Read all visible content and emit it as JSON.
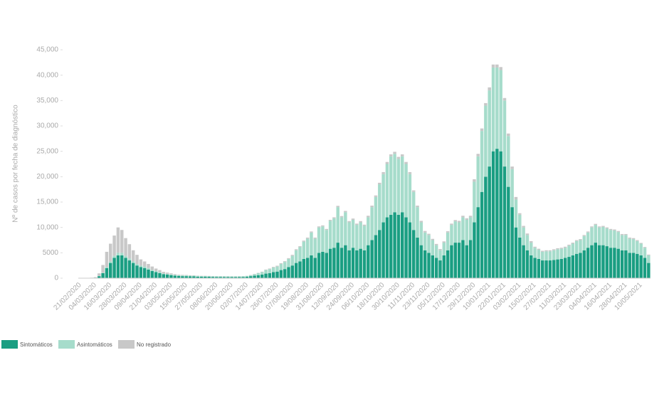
{
  "chart_data": {
    "type": "stacked_bar",
    "y_label": "Nº de casos por fecha de diagnóstico",
    "ylim": [
      0,
      45000
    ],
    "yticks": [
      0,
      5000,
      {
        "value": 10000,
        "label": "10,000"
      },
      {
        "value": 15000,
        "label": "15,000"
      },
      {
        "value": 20000,
        "label": "20,000"
      },
      {
        "value": 25000,
        "label": "25,000"
      },
      {
        "value": 30000,
        "label": "30,000"
      },
      {
        "value": 35000,
        "label": "35,000"
      },
      {
        "value": 40000,
        "label": "40,000"
      },
      {
        "value": 45000,
        "label": "45,000"
      }
    ],
    "grid": false,
    "legend": "bottom-left",
    "categories": [
      "21/02/2020",
      null,
      null,
      null,
      "04/03/2020",
      null,
      null,
      null,
      "16/03/2020",
      null,
      null,
      null,
      "28/03/2020",
      null,
      null,
      null,
      "09/04/2020",
      null,
      null,
      null,
      "21/04/2020",
      null,
      null,
      null,
      "03/05/2020",
      null,
      null,
      null,
      "15/05/2020",
      null,
      null,
      null,
      "27/05/2020",
      null,
      null,
      null,
      "08/06/2020",
      null,
      null,
      null,
      "20/06/2020",
      null,
      null,
      null,
      "02/07/2020",
      null,
      null,
      null,
      "14/07/2020",
      null,
      null,
      null,
      "26/07/2020",
      null,
      null,
      null,
      "07/08/2020",
      null,
      null,
      null,
      "19/08/2020",
      null,
      null,
      null,
      "31/08/2020",
      null,
      null,
      null,
      "12/09/2020",
      null,
      null,
      null,
      "24/09/2020",
      null,
      null,
      null,
      "06/10/2020",
      null,
      null,
      null,
      "18/10/2020",
      null,
      null,
      null,
      "30/10/2020",
      null,
      null,
      null,
      "11/11/2020",
      null,
      null,
      null,
      "23/11/2020",
      null,
      null,
      null,
      "05/12/2020",
      null,
      null,
      null,
      "17/12/2020",
      null,
      null,
      null,
      "29/12/2020",
      null,
      null,
      null,
      "10/01/2021",
      null,
      null,
      null,
      "22/01/2021",
      null,
      null,
      null,
      "03/02/2021",
      null,
      null,
      null,
      "15/02/2021",
      null,
      null,
      null,
      "27/02/2021",
      null,
      null,
      null,
      "11/03/2021",
      null,
      null,
      null,
      "23/03/2021",
      null,
      null,
      null,
      "04/04/2021",
      null,
      null,
      null,
      "16/04/2021",
      null,
      null,
      null,
      "28/04/2021",
      null,
      null,
      null,
      "10/05/2021",
      null,
      null
    ],
    "series": [
      {
        "name": "Sintomáticos",
        "color": "#1a9e82",
        "values": [
          0,
          0,
          0,
          50,
          100,
          400,
          1000,
          2000,
          3000,
          4000,
          4500,
          4500,
          4000,
          3500,
          3000,
          2500,
          2200,
          2000,
          1700,
          1400,
          1200,
          1000,
          800,
          700,
          600,
          500,
          450,
          400,
          400,
          350,
          350,
          300,
          300,
          300,
          280,
          260,
          250,
          250,
          240,
          230,
          230,
          230,
          240,
          250,
          300,
          400,
          500,
          600,
          700,
          900,
          1000,
          1200,
          1300,
          1600,
          1800,
          2200,
          2500,
          3000,
          3300,
          3800,
          4000,
          4500,
          4000,
          5000,
          5200,
          5000,
          5800,
          6000,
          7000,
          6000,
          6500,
          5500,
          6000,
          5500,
          5800,
          5500,
          6500,
          7500,
          8500,
          9500,
          11000,
          12000,
          12500,
          13000,
          12500,
          13000,
          12000,
          11000,
          9500,
          8000,
          6500,
          5500,
          5000,
          4500,
          4000,
          3500,
          4500,
          5500,
          6500,
          7000,
          7000,
          7500,
          6500,
          7500,
          11000,
          14000,
          17000,
          20000,
          22000,
          25000,
          25500,
          25000,
          22000,
          18000,
          14000,
          10000,
          8000,
          6500,
          5500,
          4500,
          4000,
          3800,
          3500,
          3500,
          3500,
          3600,
          3700,
          3800,
          4000,
          4200,
          4500,
          4800,
          5000,
          5500,
          6000,
          6500,
          7000,
          6500,
          6500,
          6300,
          6000,
          6000,
          5800,
          5500,
          5500,
          5000,
          5000,
          4800,
          4500,
          4000,
          3000
        ]
      },
      {
        "name": "Asintomáticos",
        "color": "#a6dccb",
        "values": [
          0,
          0,
          0,
          0,
          0,
          50,
          100,
          200,
          300,
          400,
          500,
          500,
          400,
          400,
          300,
          300,
          300,
          300,
          300,
          200,
          200,
          200,
          150,
          150,
          150,
          150,
          150,
          150,
          150,
          150,
          150,
          150,
          120,
          120,
          120,
          120,
          120,
          120,
          120,
          120,
          120,
          120,
          130,
          140,
          150,
          200,
          300,
          400,
          500,
          700,
          800,
          900,
          1000,
          1200,
          1400,
          1600,
          1900,
          2500,
          2800,
          3400,
          3800,
          4500,
          3800,
          5000,
          5000,
          4500,
          5500,
          5800,
          7000,
          6000,
          6500,
          5500,
          5500,
          5000,
          5200,
          4800,
          5500,
          6500,
          7500,
          9000,
          9500,
          10500,
          11500,
          11500,
          11000,
          11000,
          10500,
          9500,
          7500,
          6000,
          4500,
          3500,
          3500,
          3000,
          2500,
          2000,
          2500,
          3500,
          4000,
          4200,
          4000,
          4500,
          5000,
          4500,
          8000,
          10000,
          12000,
          14000,
          15000,
          16500,
          16000,
          16000,
          13000,
          10000,
          7500,
          5500,
          4500,
          3500,
          3000,
          2500,
          2000,
          1800,
          1700,
          1800,
          1800,
          1900,
          2000,
          2000,
          2000,
          2200,
          2300,
          2500,
          2500,
          2800,
          3000,
          3500,
          3500,
          3500,
          3600,
          3500,
          3500,
          3400,
          3300,
          3000,
          3000,
          2800,
          2700,
          2500,
          2300,
          2000,
          1500
        ]
      },
      {
        "name": "No registrado",
        "color": "#c8c8c8",
        "values": [
          0,
          0,
          0,
          50,
          100,
          500,
          1500,
          3000,
          3500,
          4000,
          5000,
          4500,
          3500,
          2800,
          2200,
          1800,
          1200,
          1000,
          800,
          700,
          500,
          400,
          300,
          250,
          200,
          150,
          100,
          100,
          80,
          80,
          60,
          60,
          50,
          50,
          50,
          50,
          40,
          40,
          40,
          40,
          30,
          30,
          30,
          30,
          30,
          40,
          50,
          60,
          80,
          100,
          100,
          120,
          150,
          150,
          150,
          150,
          200,
          200,
          200,
          200,
          200,
          200,
          200,
          200,
          200,
          200,
          200,
          200,
          250,
          250,
          250,
          250,
          250,
          250,
          250,
          250,
          300,
          300,
          300,
          300,
          400,
          400,
          400,
          400,
          400,
          400,
          400,
          400,
          300,
          300,
          300,
          300,
          250,
          250,
          250,
          250,
          250,
          250,
          250,
          250,
          300,
          300,
          300,
          300,
          500,
          500,
          500,
          500,
          600,
          600,
          600,
          600,
          500,
          500,
          500,
          500,
          300,
          300,
          300,
          300,
          200,
          200,
          200,
          200,
          200,
          200,
          200,
          200,
          200,
          200,
          200,
          200,
          200,
          200,
          200,
          200,
          200,
          200,
          200,
          200,
          200,
          200,
          200,
          200,
          200,
          200,
          200,
          200,
          150,
          150,
          150
        ]
      }
    ]
  }
}
